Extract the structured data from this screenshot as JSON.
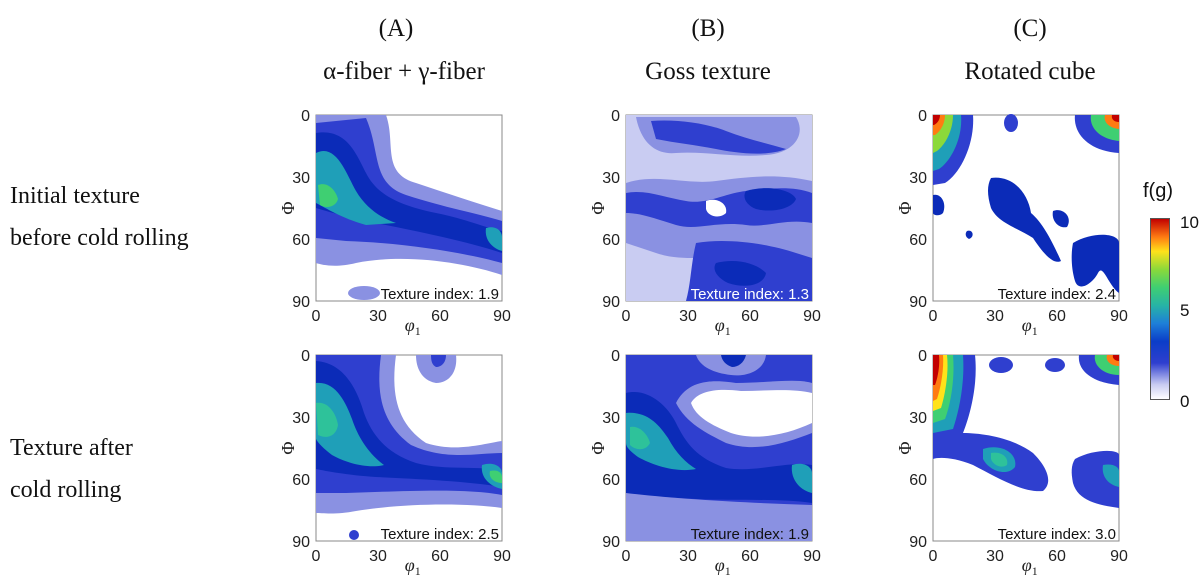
{
  "columns": [
    {
      "letter": "(A)",
      "name": "α-fiber + γ-fiber"
    },
    {
      "letter": "(B)",
      "name": "Goss texture"
    },
    {
      "letter": "(C)",
      "name": "Rotated cube"
    }
  ],
  "rows": [
    {
      "label_line1": "Initial texture",
      "label_line2": "before cold rolling"
    },
    {
      "label_line1": "Texture after",
      "label_line2": "cold rolling"
    }
  ],
  "axes": {
    "x_label": "φ",
    "x_sub": "1",
    "y_label": "Φ",
    "x_ticks": [
      "0",
      "30",
      "60",
      "90"
    ],
    "y_ticks": [
      "0",
      "30",
      "60",
      "90"
    ]
  },
  "texture_index": {
    "initial": {
      "A": "Texture index: 1.9",
      "B": "Texture index: 1.3",
      "C": "Texture index: 2.4"
    },
    "rolled": {
      "A": "Texture index: 2.5",
      "B": "Texture index: 1.9",
      "C": "Texture index: 3.0"
    }
  },
  "colorbar": {
    "title": "f(g)",
    "ticks": [
      "10",
      "5",
      "0"
    ],
    "colors": {
      "low": "#ffffff",
      "mid": "#27b3a6",
      "high": "#c20000"
    }
  },
  "palette": {
    "lightest": "#c9ccf2",
    "light": "#8a91e2",
    "mid": "#2f3fcf",
    "dark": "#0b2bb8",
    "teal": "#1f9fb8",
    "green": "#3fcf72",
    "yellow": "#ffe21a",
    "orange": "#ff7b12",
    "red": "#c20000"
  }
}
